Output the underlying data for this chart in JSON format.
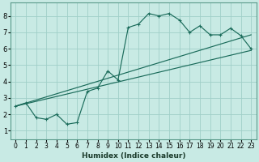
{
  "title": "",
  "xlabel": "Humidex (Indice chaleur)",
  "xlim": [
    -0.5,
    23.5
  ],
  "ylim": [
    0.5,
    8.8
  ],
  "xticks": [
    0,
    1,
    2,
    3,
    4,
    5,
    6,
    7,
    8,
    9,
    10,
    11,
    12,
    13,
    14,
    15,
    16,
    17,
    18,
    19,
    20,
    21,
    22,
    23
  ],
  "yticks": [
    1,
    2,
    3,
    4,
    5,
    6,
    7,
    8
  ],
  "bg_color": "#c8eae4",
  "grid_color": "#a0cfc8",
  "line_color": "#1a6b5a",
  "line1_x": [
    0,
    1,
    2,
    3,
    4,
    5,
    6,
    7,
    8,
    9,
    10,
    11,
    12,
    13,
    14,
    15,
    16,
    17,
    18,
    19,
    20,
    21,
    22,
    23
  ],
  "line1_y": [
    2.5,
    2.7,
    1.8,
    1.7,
    2.0,
    1.4,
    1.5,
    3.4,
    3.6,
    4.65,
    4.1,
    7.3,
    7.5,
    8.15,
    8.0,
    8.15,
    7.75,
    7.0,
    7.4,
    6.85,
    6.85,
    7.25,
    6.8,
    6.0
  ],
  "line2_x": [
    0,
    23
  ],
  "line2_y": [
    2.5,
    5.9
  ],
  "line3_x": [
    0,
    9,
    23
  ],
  "line3_y": [
    2.5,
    4.2,
    6.85
  ]
}
